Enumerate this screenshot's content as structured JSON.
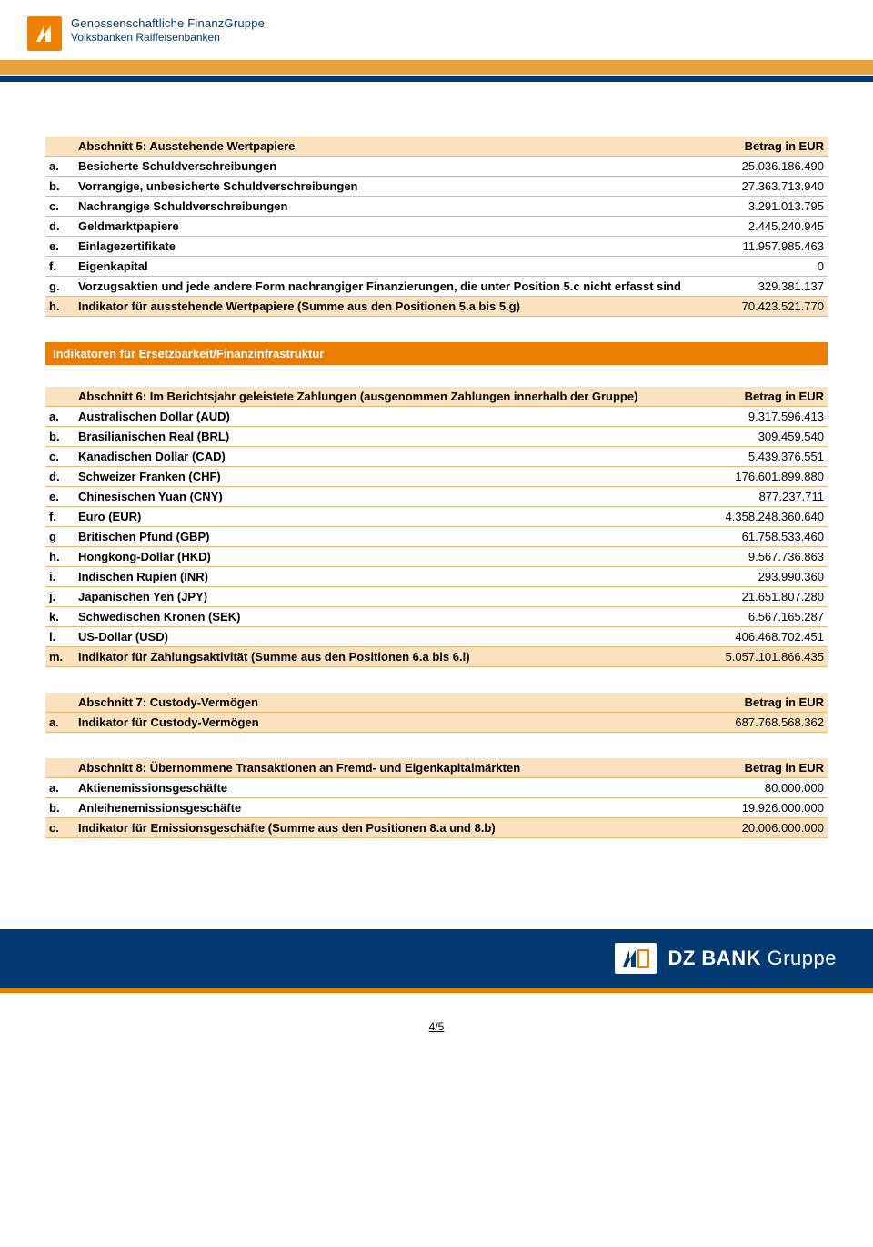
{
  "colors": {
    "orange_bar": "#e8a23b",
    "orange_accent": "#ed7d00",
    "blue_dark": "#003a70",
    "row_shade": "#fce2bf",
    "row_border": "#e8b77a"
  },
  "header": {
    "brand_line1": "Genossenschaftliche FinanzGruppe",
    "brand_line2": "Volksbanken Raiffeisenbanken"
  },
  "section5": {
    "title": "Abschnitt 5: Ausstehende Wertpapiere",
    "amount_header": "Betrag in EUR",
    "rows": [
      {
        "k": "a.",
        "desc": "Besicherte Schuldverschreibungen",
        "val": "25.036.186.490"
      },
      {
        "k": "b.",
        "desc": "Vorrangige, unbesicherte Schuldverschreibungen",
        "val": "27.363.713.940"
      },
      {
        "k": "c.",
        "desc": "Nachrangige Schuldverschreibungen",
        "val": "3.291.013.795"
      },
      {
        "k": "d.",
        "desc": "Geldmarktpapiere",
        "val": "2.445.240.945"
      },
      {
        "k": "e.",
        "desc": "Einlagezertifikate",
        "val": "11.957.985.463"
      },
      {
        "k": "f.",
        "desc": "Eigenkapital",
        "val": "0"
      },
      {
        "k": "g.",
        "desc": "Vorzugsaktien und jede andere Form nachrangiger Finanzierungen, die unter Position 5.c nicht erfasst sind",
        "val": "329.381.137"
      }
    ],
    "summary": {
      "k": "h.",
      "desc": "Indikator für ausstehende Wertpapiere (Summe aus den Positionen 5.a bis 5.g)",
      "val": "70.423.521.770"
    }
  },
  "section_bar": "Indikatoren für Ersetzbarkeit/Finanzinfrastruktur",
  "section6": {
    "title": "Abschnitt 6: Im Berichtsjahr geleistete Zahlungen (ausgenommen Zahlungen innerhalb der Gruppe)",
    "amount_header": "Betrag in EUR",
    "rows": [
      {
        "k": "a.",
        "desc": "Australischen Dollar (AUD)",
        "val": "9.317.596.413"
      },
      {
        "k": "b.",
        "desc": "Brasilianischen Real (BRL)",
        "val": "309.459.540"
      },
      {
        "k": "c.",
        "desc": "Kanadischen Dollar (CAD)",
        "val": "5.439.376.551"
      },
      {
        "k": "d.",
        "desc": "Schweizer Franken (CHF)",
        "val": "176.601.899.880"
      },
      {
        "k": "e.",
        "desc": "Chinesischen Yuan (CNY)",
        "val": "877.237.711"
      },
      {
        "k": "f.",
        "desc": "Euro (EUR)",
        "val": "4.358.248.360.640"
      },
      {
        "k": "g",
        "desc": "Britischen Pfund (GBP)",
        "val": "61.758.533.460"
      },
      {
        "k": "h.",
        "desc": "Hongkong-Dollar (HKD)",
        "val": "9.567.736.863"
      },
      {
        "k": "i.",
        "desc": "Indischen Rupien (INR)",
        "val": "293.990.360"
      },
      {
        "k": "j.",
        "desc": "Japanischen Yen (JPY)",
        "val": "21.651.807.280"
      },
      {
        "k": "k.",
        "desc": "Schwedischen Kronen (SEK)",
        "val": "6.567.165.287"
      },
      {
        "k": "l.",
        "desc": "US-Dollar (USD)",
        "val": "406.468.702.451"
      }
    ],
    "summary": {
      "k": "m.",
      "desc": "Indikator für Zahlungsaktivität (Summe aus den Positionen 6.a bis 6.l)",
      "val": "5.057.101.866.435"
    }
  },
  "section7": {
    "title": "Abschnitt 7: Custody-Vermögen",
    "amount_header": "Betrag in EUR",
    "rows": [],
    "summary_rows": [
      {
        "k": "a.",
        "desc": "Indikator für Custody-Vermögen",
        "val": "687.768.568.362"
      }
    ]
  },
  "section8": {
    "title": "Abschnitt 8: Übernommene Transaktionen an Fremd- und Eigenkapitalmärkten",
    "amount_header": "Betrag in EUR",
    "rows": [
      {
        "k": "a.",
        "desc": "Aktienemissionsgeschäfte",
        "val": "80.000.000"
      },
      {
        "k": "b.",
        "desc": "Anleihenemissionsgeschäfte",
        "val": "19.926.000.000"
      }
    ],
    "summary": {
      "k": "c.",
      "desc": "Indikator für Emissionsgeschäfte (Summe aus den Positionen 8.a und 8.b)",
      "val": "20.006.000.000"
    }
  },
  "footer": {
    "bank": "DZ BANK",
    "group": "Gruppe"
  },
  "page_number": "4/5"
}
